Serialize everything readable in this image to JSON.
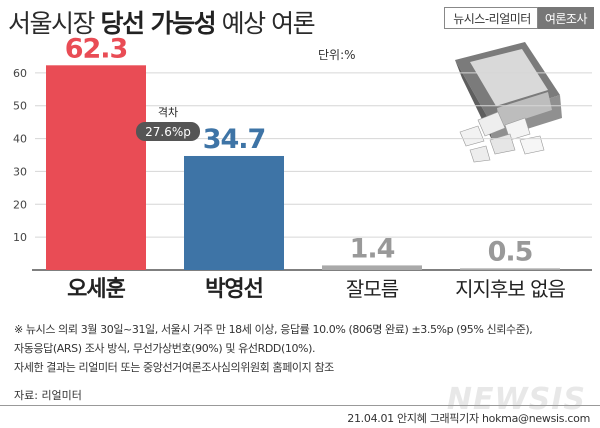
{
  "header": {
    "title_part1": "서울시장",
    "title_part2": "당선 가능성",
    "title_part3": "예상 여론",
    "badge_left": "뉴시스-리얼미터",
    "badge_right": "여론조사"
  },
  "unit_label": "단위:%",
  "chart_data": {
    "type": "bar",
    "title": "서울시장 당선 가능성 예상 여론",
    "unit": "단위:%",
    "categories": [
      "오세훈",
      "박영선",
      "잘모름",
      "지지후보 없음"
    ],
    "values": [
      62.3,
      34.7,
      1.4,
      0.5
    ],
    "value_labels": [
      "62.3",
      "34.7",
      "1.4",
      "0.5"
    ],
    "bar_colors": [
      "#e94c55",
      "#3e74a6",
      "#a9a9a9",
      "#a9a9a9"
    ],
    "label_colors": [
      "#e94c55",
      "#3e74a6",
      "#999999",
      "#999999"
    ],
    "yticks": [
      10,
      20,
      30,
      40,
      50,
      60
    ],
    "ylim": [
      0,
      70
    ],
    "grid": true,
    "annotation": {
      "label": "격차",
      "value": "27.6%p"
    }
  },
  "notes": {
    "line1": "※ 뉴시스 의뢰 3월 30일~31일, 서울시 거주 만 18세 이상, 응답률 10.0% (806명 완료) ±3.5%p (95% 신뢰수준),",
    "line2": "자동응답(ARS) 조사 방식, 무선가상번호(90%) 및 유선RDD(10%).",
    "line3": "자세한 결과는 리얼미터 또는 중앙선거여론조사심의위원회 홈페이지 참조",
    "source": "자료: 리얼미터"
  },
  "watermark": "NEWSIS",
  "credit": "21.04.01  안지혜  그래픽기자  hokma@newsis.com"
}
